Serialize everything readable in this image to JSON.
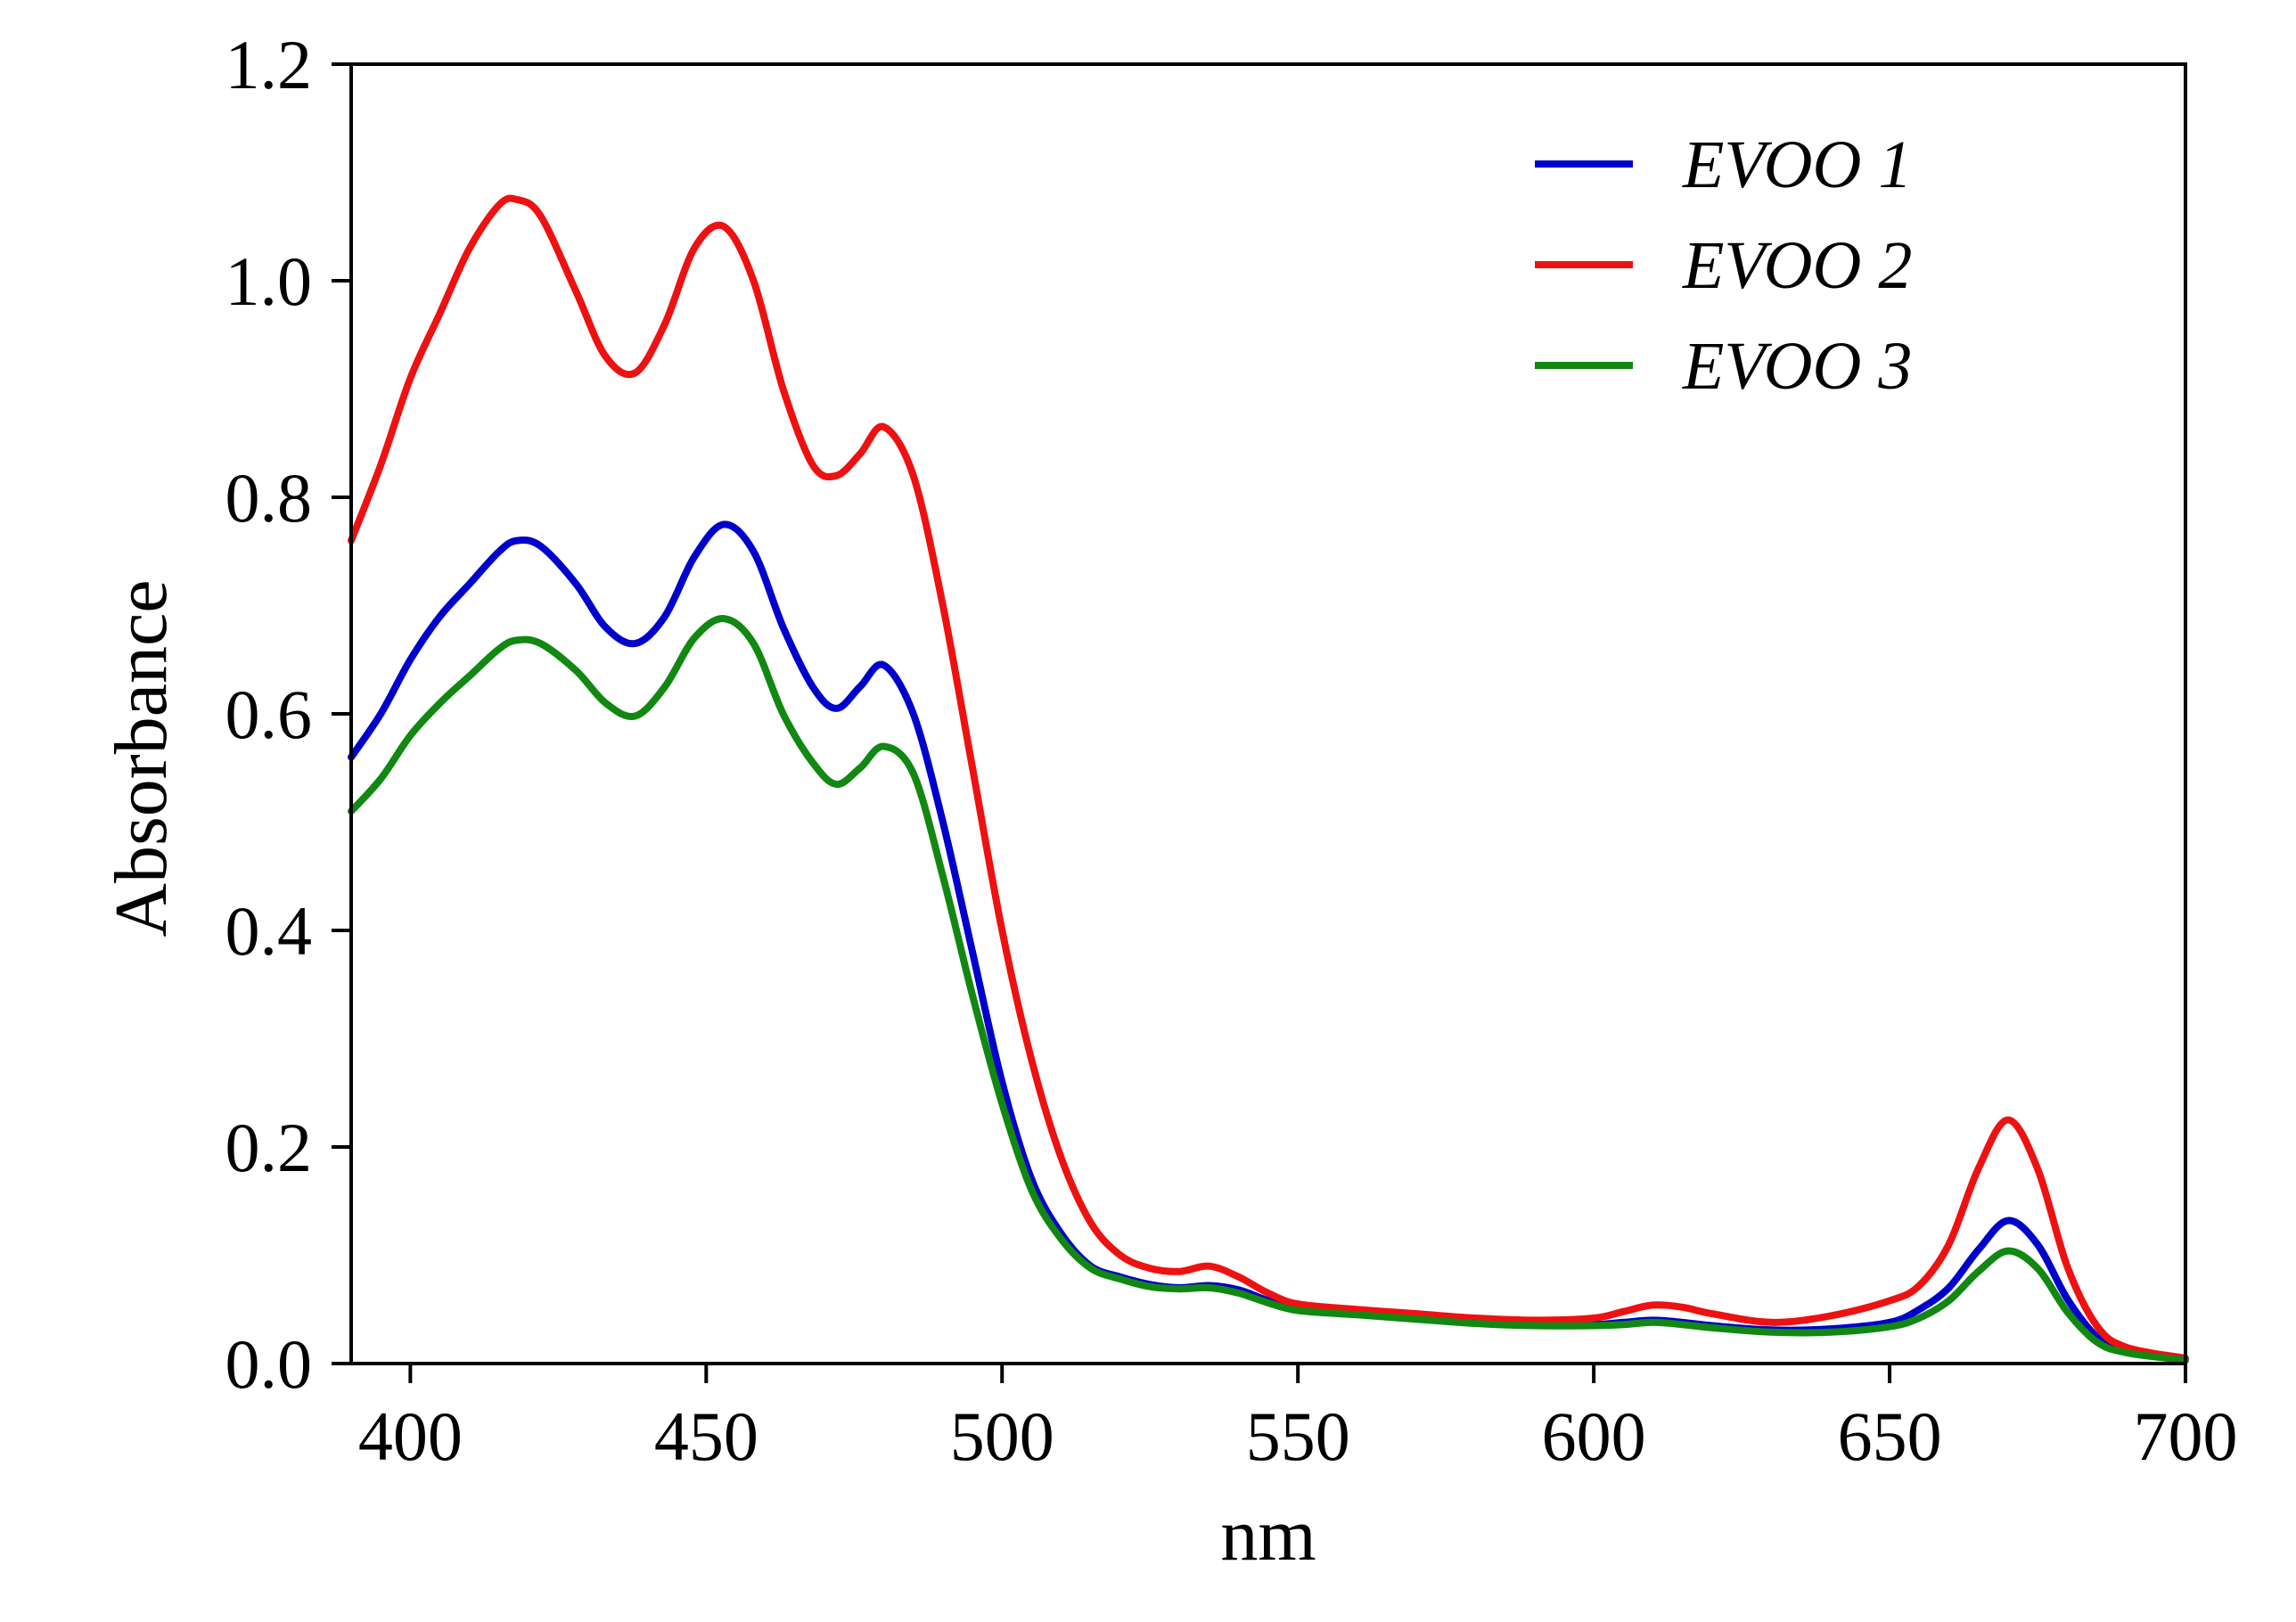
{
  "chart_data": {
    "type": "line",
    "title": "",
    "xlabel": "nm",
    "ylabel": "Absorbance",
    "xlim": [
      390,
      700
    ],
    "ylim": [
      0,
      1.2
    ],
    "x_ticks": [
      400,
      450,
      500,
      550,
      600,
      650,
      700
    ],
    "y_ticks": [
      0.0,
      0.2,
      0.4,
      0.6,
      0.8,
      1.0,
      1.2
    ],
    "x_tick_labels": [
      "400",
      "450",
      "500",
      "550",
      "600",
      "650",
      "700"
    ],
    "y_tick_labels": [
      "0.0",
      "0.2",
      "0.4",
      "0.6",
      "0.8",
      "1.0",
      "1.2"
    ],
    "grid": false,
    "legend_position": "top-right",
    "series": [
      {
        "name": "EVOO 1",
        "color": "#0000cc",
        "x": [
          390,
          395,
          400,
          405,
          410,
          415,
          418,
          422,
          428,
          433,
          438,
          443,
          448,
          453,
          458,
          463,
          468,
          472,
          476,
          480,
          485,
          490,
          495,
          500,
          505,
          510,
          515,
          520,
          525,
          530,
          535,
          540,
          545,
          550,
          560,
          570,
          580,
          590,
          600,
          605,
          610,
          615,
          620,
          630,
          640,
          650,
          655,
          660,
          665,
          670,
          675,
          680,
          685,
          690,
          700
        ],
        "y": [
          0.56,
          0.6,
          0.65,
          0.69,
          0.72,
          0.75,
          0.76,
          0.755,
          0.72,
          0.68,
          0.665,
          0.69,
          0.745,
          0.775,
          0.75,
          0.68,
          0.625,
          0.605,
          0.625,
          0.645,
          0.6,
          0.5,
          0.38,
          0.26,
          0.17,
          0.12,
          0.09,
          0.08,
          0.073,
          0.07,
          0.072,
          0.068,
          0.058,
          0.05,
          0.046,
          0.042,
          0.038,
          0.036,
          0.036,
          0.038,
          0.04,
          0.038,
          0.035,
          0.031,
          0.032,
          0.038,
          0.05,
          0.07,
          0.105,
          0.132,
          0.11,
          0.06,
          0.025,
          0.012,
          0.004
        ]
      },
      {
        "name": "EVOO 2",
        "color": "#ee1111",
        "x": [
          390,
          395,
          400,
          405,
          410,
          415,
          418,
          422,
          428,
          433,
          438,
          443,
          448,
          453,
          458,
          463,
          468,
          472,
          476,
          480,
          485,
          490,
          495,
          500,
          505,
          510,
          515,
          520,
          525,
          530,
          535,
          540,
          545,
          550,
          560,
          570,
          580,
          590,
          600,
          605,
          610,
          615,
          620,
          630,
          640,
          650,
          655,
          660,
          665,
          670,
          675,
          680,
          685,
          690,
          700
        ],
        "y": [
          0.76,
          0.83,
          0.91,
          0.97,
          1.03,
          1.07,
          1.075,
          1.06,
          0.99,
          0.93,
          0.915,
          0.96,
          1.03,
          1.05,
          1.0,
          0.9,
          0.83,
          0.82,
          0.84,
          0.865,
          0.82,
          0.7,
          0.55,
          0.4,
          0.28,
          0.19,
          0.13,
          0.1,
          0.088,
          0.085,
          0.09,
          0.08,
          0.065,
          0.055,
          0.05,
          0.046,
          0.042,
          0.04,
          0.042,
          0.048,
          0.054,
          0.052,
          0.046,
          0.038,
          0.044,
          0.058,
          0.072,
          0.11,
          0.18,
          0.225,
          0.18,
          0.09,
          0.035,
          0.015,
          0.005
        ]
      },
      {
        "name": "EVOO 3",
        "color": "#118811",
        "x": [
          390,
          395,
          400,
          405,
          410,
          415,
          418,
          422,
          428,
          433,
          438,
          443,
          448,
          453,
          458,
          463,
          468,
          472,
          476,
          480,
          485,
          490,
          495,
          500,
          505,
          510,
          515,
          520,
          525,
          530,
          535,
          540,
          545,
          550,
          560,
          570,
          580,
          590,
          600,
          605,
          610,
          615,
          620,
          630,
          640,
          650,
          655,
          660,
          665,
          670,
          675,
          680,
          685,
          690,
          700
        ],
        "y": [
          0.51,
          0.54,
          0.58,
          0.61,
          0.635,
          0.66,
          0.668,
          0.665,
          0.64,
          0.61,
          0.598,
          0.625,
          0.67,
          0.688,
          0.665,
          0.6,
          0.555,
          0.535,
          0.55,
          0.57,
          0.545,
          0.45,
          0.34,
          0.24,
          0.16,
          0.115,
          0.088,
          0.078,
          0.071,
          0.069,
          0.07,
          0.065,
          0.056,
          0.049,
          0.045,
          0.041,
          0.037,
          0.035,
          0.035,
          0.036,
          0.038,
          0.036,
          0.033,
          0.029,
          0.029,
          0.034,
          0.042,
          0.058,
          0.085,
          0.104,
          0.088,
          0.048,
          0.02,
          0.01,
          0.003
        ]
      }
    ]
  }
}
